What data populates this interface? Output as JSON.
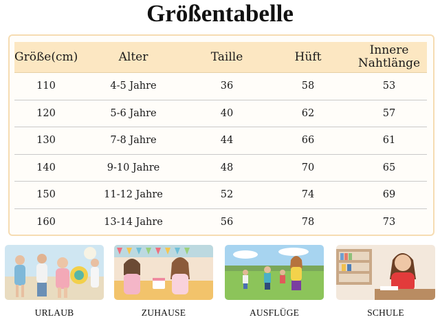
{
  "title": "Größentabelle",
  "table": {
    "headers": [
      "Größe(cm)",
      "Alter",
      "Taille",
      "Hüft",
      "Innere Nahtlänge"
    ],
    "rows": [
      [
        "110",
        "4-5 Jahre",
        "36",
        "58",
        "53"
      ],
      [
        "120",
        "5-6 Jahre",
        "40",
        "62",
        "57"
      ],
      [
        "130",
        "7-8 Jahre",
        "44",
        "66",
        "61"
      ],
      [
        "140",
        "9-10 Jahre",
        "48",
        "70",
        "65"
      ],
      [
        "150",
        "11-12 Jahre",
        "52",
        "74",
        "69"
      ],
      [
        "160",
        "13-14 Jahre",
        "56",
        "78",
        "73"
      ]
    ]
  },
  "occasions": [
    {
      "caption": "URLAUB"
    },
    {
      "caption": "ZUHAUSE"
    },
    {
      "caption": "AUSFLÜGE"
    },
    {
      "caption": "SCHULE"
    }
  ],
  "colors": {
    "header_bg": "#fce7c2",
    "frame_border": "#f6dcb2",
    "row_divider": "#c9c9c9"
  }
}
